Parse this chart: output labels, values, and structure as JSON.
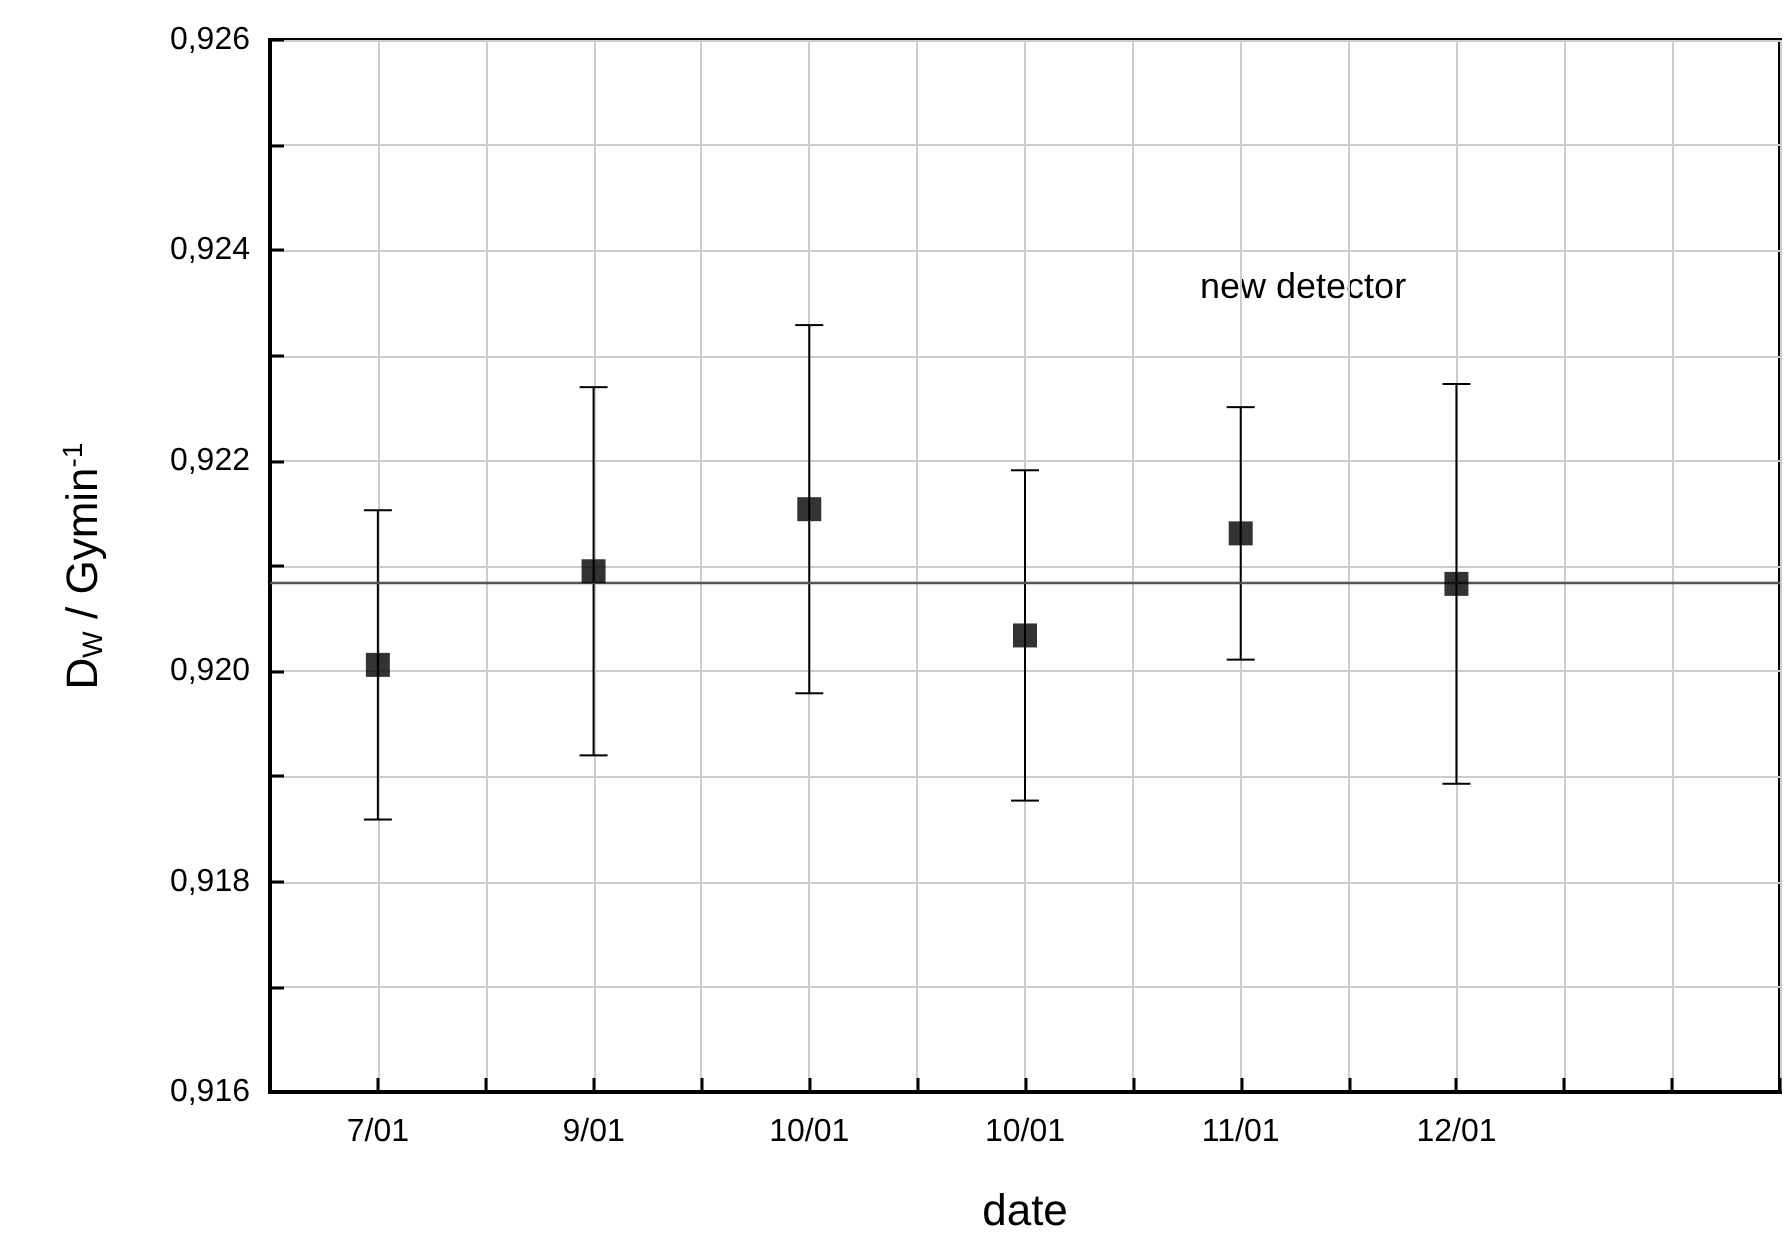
{
  "chart_data": {
    "type": "scatter",
    "xlabel": "date",
    "ylabel": "D$_{W}$ / Gymin$^{-1}$",
    "categories": [
      "7/01",
      "9/01",
      "10/01",
      "10/01",
      "11/01",
      "12/01",
      null
    ],
    "series": [
      {
        "color": "#000000",
        "values": [
          0.92006,
          0.92095,
          0.92154,
          0.92034,
          0.92131,
          0.92083,
          null
        ],
        "errors": [
          0.00147,
          0.00175,
          0.00175,
          0.00157,
          0.0012,
          0.0019,
          null
        ]
      }
    ],
    "ylim": [
      0.916,
      0.926
    ],
    "yticks": [
      {
        "value": 0.916,
        "label": "0,916"
      },
      {
        "value": 0.917,
        "label": null
      },
      {
        "value": 0.918,
        "label": "0,918"
      },
      {
        "value": 0.919,
        "label": null
      },
      {
        "value": 0.92,
        "label": "0,920"
      },
      {
        "value": 0.921,
        "label": null
      },
      {
        "value": 0.922,
        "label": "0,922"
      },
      {
        "value": 0.923,
        "label": null
      },
      {
        "value": 0.924,
        "label": "0,924"
      },
      {
        "value": 0.925,
        "label": null
      },
      {
        "value": 0.926,
        "label": "0,926"
      }
    ],
    "ref_lines": [
      {
        "axis": "y",
        "value": 0.92085,
        "color": "#555555"
      }
    ],
    "annotations": [
      "new detector"
    ],
    "grid": true,
    "marker": "square"
  }
}
